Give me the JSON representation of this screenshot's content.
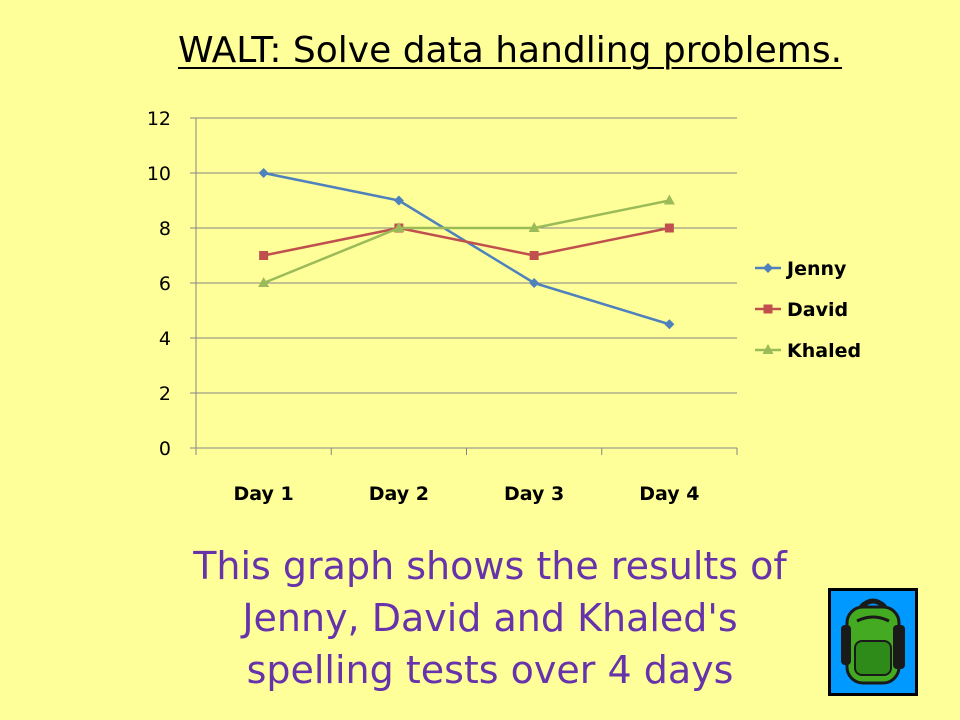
{
  "title": "WALT: Solve data handling problems.",
  "caption_lines": [
    "This graph shows the results of",
    "Jenny, David and Khaled's",
    "spelling tests over 4 days"
  ],
  "chart_data": {
    "type": "line",
    "categories": [
      "Day 1",
      "Day 2",
      "Day 3",
      "Day 4"
    ],
    "ylim": [
      0,
      12
    ],
    "yticks": [
      0,
      2,
      4,
      6,
      8,
      10,
      12
    ],
    "grid": true,
    "legend_position": "right",
    "series": [
      {
        "name": "Jenny",
        "values": [
          10,
          9,
          6,
          4.5
        ],
        "color": "#4F81BD",
        "marker": "diamond"
      },
      {
        "name": "David",
        "values": [
          7,
          8,
          7,
          8
        ],
        "color": "#C0504D",
        "marker": "square"
      },
      {
        "name": "Khaled",
        "values": [
          6,
          8,
          8,
          9
        ],
        "color": "#9BBB59",
        "marker": "triangle"
      }
    ]
  },
  "clipart": {
    "icon": "backpack-icon",
    "background": "#0099FF"
  }
}
